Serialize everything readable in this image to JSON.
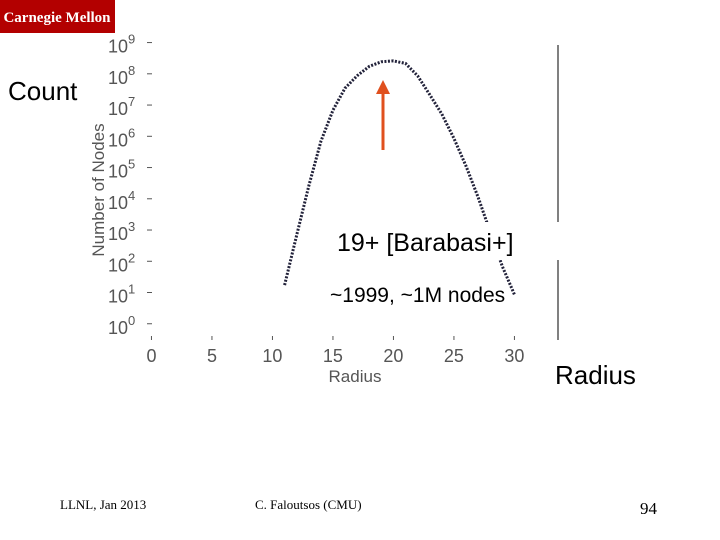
{
  "header": {
    "logo": "Carnegie Mellon"
  },
  "chart_data": {
    "type": "line",
    "xlabel": "Radius",
    "ylabel": "Number of Nodes",
    "x": [
      11,
      12,
      13,
      14,
      15,
      16,
      17,
      18,
      19,
      20,
      21,
      22,
      23,
      24,
      25,
      26,
      27,
      28,
      29,
      30
    ],
    "values": [
      20,
      800,
      30000,
      800000,
      8000000,
      40000000,
      100000000,
      200000000,
      280000000,
      300000000,
      250000000,
      100000000,
      25000000,
      6000000,
      1000000,
      130000,
      13000,
      1000,
      80,
      10
    ],
    "color": "#22223a",
    "xlim": [
      -2.6,
      33.6
    ],
    "xticks": [
      0,
      5,
      10,
      15,
      20,
      25,
      30
    ],
    "ylim": [
      0.35,
      1400000000
    ],
    "log_y": true,
    "yticks": [
      {
        "value": 1,
        "label": "10",
        "exp": "0"
      },
      {
        "value": 10,
        "label": "10",
        "exp": "1"
      },
      {
        "value": 100,
        "label": "10",
        "exp": "2"
      },
      {
        "value": 1000,
        "label": "10",
        "exp": "3"
      },
      {
        "value": 10000,
        "label": "10",
        "exp": "4"
      },
      {
        "value": 100000,
        "label": "10",
        "exp": "5"
      },
      {
        "value": 1000000,
        "label": "10",
        "exp": "6"
      },
      {
        "value": 10000000,
        "label": "10",
        "exp": "7"
      },
      {
        "value": 100000000,
        "label": "10",
        "exp": "8"
      },
      {
        "value": 1000000000,
        "label": "10",
        "exp": "9"
      }
    ]
  },
  "annotations": {
    "y_title": "Count",
    "peak": "19+ [Barabasi+]",
    "note": "~1999, ~1M nodes",
    "x_title": "Radius"
  },
  "footer": {
    "left": "LLNL, Jan 2013",
    "center": "C. Faloutsos (CMU)",
    "page": "94"
  }
}
